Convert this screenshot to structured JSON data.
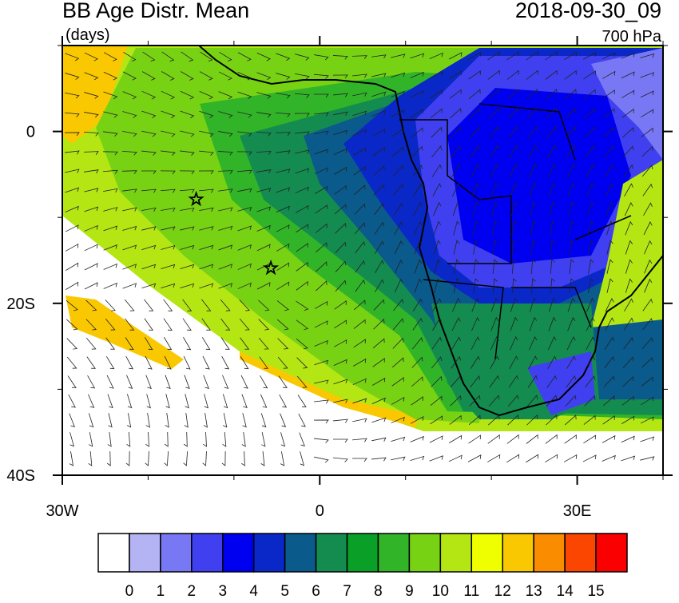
{
  "header": {
    "title": "BB Age Distr. Mean",
    "units": "(days)",
    "time": "2018-09-30_09",
    "level": "700 hPa"
  },
  "map": {
    "lon_range": [
      -30,
      40
    ],
    "lat_range": [
      -40,
      10
    ],
    "lon_ticks": [
      {
        "value": -30,
        "label": "30W"
      },
      0,
      {
        "value": 30,
        "label": "30E"
      }
    ],
    "lat_ticks": [
      0,
      {
        "value": -20,
        "label": "20S"
      },
      {
        "value": -40,
        "label": "40S"
      }
    ],
    "markers": [
      {
        "lon": -14.4,
        "lat": -7.9
      },
      {
        "lon": -5.7,
        "lat": -15.9
      }
    ]
  },
  "colorbar": {
    "labels": [
      0,
      1,
      2,
      3,
      4,
      5,
      6,
      7,
      8,
      9,
      10,
      11,
      12,
      13,
      14,
      15
    ],
    "colors": [
      "#ffffff",
      "#b4b4f5",
      "#7878f5",
      "#4040f0",
      "#0000f0",
      "#0a28c8",
      "#0a5a8c",
      "#148c50",
      "#0aa028",
      "#32b428",
      "#78d214",
      "#b4e614",
      "#f0ff00",
      "#fac800",
      "#fa8c00",
      "#fa4600",
      "#fa0000"
    ]
  }
}
